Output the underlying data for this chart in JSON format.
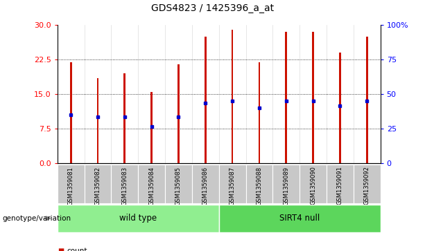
{
  "title": "GDS4823 / 1425396_a_at",
  "samples": [
    "GSM1359081",
    "GSM1359082",
    "GSM1359083",
    "GSM1359084",
    "GSM1359085",
    "GSM1359086",
    "GSM1359087",
    "GSM1359088",
    "GSM1359089",
    "GSM1359090",
    "GSM1359091",
    "GSM1359092"
  ],
  "counts": [
    22.0,
    18.5,
    19.5,
    15.5,
    21.5,
    27.5,
    29.0,
    22.0,
    28.5,
    28.5,
    24.0,
    27.5
  ],
  "percentile_values": [
    10.5,
    10.0,
    10.0,
    8.0,
    10.0,
    13.0,
    13.5,
    12.0,
    13.5,
    13.5,
    12.5,
    13.5
  ],
  "groups": [
    "wild type",
    "wild type",
    "wild type",
    "wild type",
    "wild type",
    "wild type",
    "SIRT4 null",
    "SIRT4 null",
    "SIRT4 null",
    "SIRT4 null",
    "SIRT4 null",
    "SIRT4 null"
  ],
  "bar_color": "#CC1100",
  "blue_marker_color": "#0000CC",
  "ylim_left": [
    0,
    30
  ],
  "ylim_right": [
    0,
    100
  ],
  "yticks_left": [
    0,
    7.5,
    15,
    22.5,
    30
  ],
  "yticks_right": [
    0,
    25,
    50,
    75,
    100
  ],
  "ytick_labels_right": [
    "0",
    "25",
    "50",
    "75",
    "100%"
  ],
  "grid_values": [
    7.5,
    15,
    22.5
  ],
  "bg_color": "#FFFFFF",
  "bar_width": 0.07,
  "label_area_color": "#C8C8C8",
  "wild_type_color": "#90EE90",
  "sirt4_color": "#5CD65C",
  "genotype_label": "genotype/variation",
  "legend_count_color": "#CC1100",
  "legend_pct_color": "#0000CC"
}
